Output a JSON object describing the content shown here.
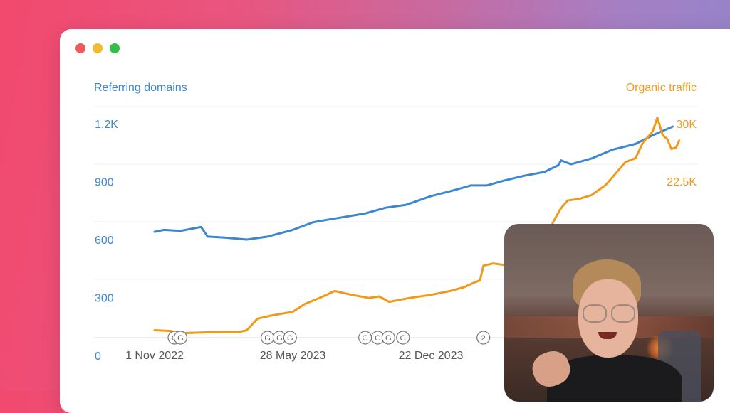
{
  "window": {
    "controls": [
      "close",
      "minimize",
      "maximize"
    ]
  },
  "colors": {
    "blue": "#3d86d0",
    "orange": "#f09a1c"
  },
  "chart_data": {
    "type": "line",
    "left_axis_label": "Referring domains",
    "right_axis_label": "Organic traffic",
    "left_ticks": [
      "0",
      "300",
      "600",
      "900",
      "1.2K"
    ],
    "right_ticks": [
      "22.5K",
      "30K"
    ],
    "x_ticks": [
      "1 Nov 2022",
      "28 May 2023",
      "22 Dec 2023"
    ],
    "left_ylim": [
      0,
      1200
    ],
    "right_ylim": [
      0,
      30000
    ],
    "grid": true,
    "annotation_markers": [
      {
        "date": "2022-12-01",
        "label": "G"
      },
      {
        "date": "2022-12-10",
        "label": "G"
      },
      {
        "date": "2023-04-20",
        "label": "G"
      },
      {
        "date": "2023-05-08",
        "label": "G"
      },
      {
        "date": "2023-05-24",
        "label": "G"
      },
      {
        "date": "2023-09-14",
        "label": "G"
      },
      {
        "date": "2023-10-03",
        "label": "G"
      },
      {
        "date": "2023-10-19",
        "label": "G"
      },
      {
        "date": "2023-11-10",
        "label": "G"
      },
      {
        "date": "2024-03-10",
        "label": "2"
      }
    ],
    "series": [
      {
        "name": "Referring domains",
        "axis": "left",
        "color": "#3d86d0",
        "points": [
          [
            "2022-11-01",
            640
          ],
          [
            "2022-11-15",
            650
          ],
          [
            "2022-12-10",
            645
          ],
          [
            "2023-01-10",
            665
          ],
          [
            "2023-01-20",
            615
          ],
          [
            "2023-02-15",
            610
          ],
          [
            "2023-03-20",
            600
          ],
          [
            "2023-04-20",
            615
          ],
          [
            "2023-05-28",
            650
          ],
          [
            "2023-06-28",
            690
          ],
          [
            "2023-07-15",
            700
          ],
          [
            "2023-08-10",
            715
          ],
          [
            "2023-09-14",
            735
          ],
          [
            "2023-10-15",
            765
          ],
          [
            "2023-11-15",
            780
          ],
          [
            "2023-12-22",
            825
          ],
          [
            "2024-01-20",
            850
          ],
          [
            "2024-02-20",
            880
          ],
          [
            "2024-03-15",
            880
          ],
          [
            "2024-04-10",
            905
          ],
          [
            "2024-05-10",
            930
          ],
          [
            "2024-06-10",
            950
          ],
          [
            "2024-07-01",
            985
          ],
          [
            "2024-07-05",
            1010
          ],
          [
            "2024-07-20",
            990
          ],
          [
            "2024-08-20",
            1020
          ],
          [
            "2024-09-20",
            1065
          ],
          [
            "2024-10-25",
            1095
          ],
          [
            "2024-11-20",
            1140
          ],
          [
            "2024-12-20",
            1185
          ]
        ]
      },
      {
        "name": "Organic traffic",
        "axis": "right",
        "color": "#f09a1c",
        "points": [
          [
            "2022-11-01",
            3100
          ],
          [
            "2022-11-25",
            3000
          ],
          [
            "2022-12-10",
            2700
          ],
          [
            "2023-01-10",
            2800
          ],
          [
            "2023-02-10",
            2900
          ],
          [
            "2023-03-10",
            2900
          ],
          [
            "2023-03-20",
            3100
          ],
          [
            "2023-04-05",
            4600
          ],
          [
            "2023-04-25",
            5000
          ],
          [
            "2023-05-28",
            5500
          ],
          [
            "2023-06-15",
            6500
          ],
          [
            "2023-07-10",
            7400
          ],
          [
            "2023-07-30",
            8200
          ],
          [
            "2023-08-25",
            7700
          ],
          [
            "2023-09-20",
            7300
          ],
          [
            "2023-10-05",
            7500
          ],
          [
            "2023-10-20",
            6800
          ],
          [
            "2023-11-20",
            7300
          ],
          [
            "2023-12-22",
            7700
          ],
          [
            "2024-01-20",
            8200
          ],
          [
            "2024-02-10",
            8700
          ],
          [
            "2024-02-25",
            9300
          ],
          [
            "2024-03-05",
            9600
          ],
          [
            "2024-03-10",
            11500
          ],
          [
            "2024-03-25",
            11800
          ],
          [
            "2024-04-10",
            11600
          ],
          [
            "2024-05-01",
            13500
          ],
          [
            "2024-05-20",
            14000
          ],
          [
            "2024-06-10",
            15000
          ],
          [
            "2024-06-25",
            17500
          ],
          [
            "2024-07-05",
            19000
          ],
          [
            "2024-07-15",
            20000
          ],
          [
            "2024-08-01",
            20200
          ],
          [
            "2024-08-20",
            20700
          ],
          [
            "2024-09-10",
            22000
          ],
          [
            "2024-09-25",
            23500
          ],
          [
            "2024-10-10",
            25000
          ],
          [
            "2024-10-25",
            25500
          ],
          [
            "2024-11-05",
            27500
          ],
          [
            "2024-11-20",
            29000
          ],
          [
            "2024-11-27",
            30800
          ],
          [
            "2024-12-05",
            28500
          ],
          [
            "2024-12-12",
            28000
          ],
          [
            "2024-12-18",
            26700
          ],
          [
            "2024-12-25",
            26900
          ],
          [
            "2024-12-30",
            27800
          ]
        ]
      }
    ]
  }
}
